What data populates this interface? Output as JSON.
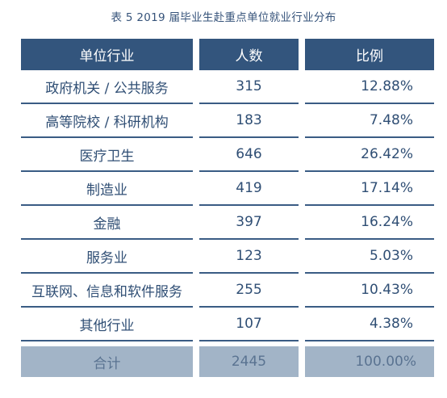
{
  "title": "表 5   2019 届毕业生赴重点单位就业行业分布",
  "headers": [
    "单位行业",
    "人数",
    "比例"
  ],
  "rows": [
    {
      "industry": "政府机关 / 公共服务",
      "count": "315",
      "ratio": "12.88%"
    },
    {
      "industry": "高等院校 / 科研机构",
      "count": "183",
      "ratio": "7.48%"
    },
    {
      "industry": "医疗卫生",
      "count": "646",
      "ratio": "26.42%"
    },
    {
      "industry": "制造业",
      "count": "419",
      "ratio": "17.14%"
    },
    {
      "industry": "金融",
      "count": "397",
      "ratio": "16.24%"
    },
    {
      "industry": "服务业",
      "count": "123",
      "ratio": "5.03%"
    },
    {
      "industry": "互联网、信息和软件服务",
      "count": "255",
      "ratio": "10.43%"
    },
    {
      "industry": "其他行业",
      "count": "107",
      "ratio": "4.38%"
    }
  ],
  "total": {
    "label": "合计",
    "count": "2445",
    "ratio": "100.00%"
  },
  "colors": {
    "header_bg": "#33557d",
    "total_bg": "#a2b4c7",
    "text": "#2f4e74"
  }
}
